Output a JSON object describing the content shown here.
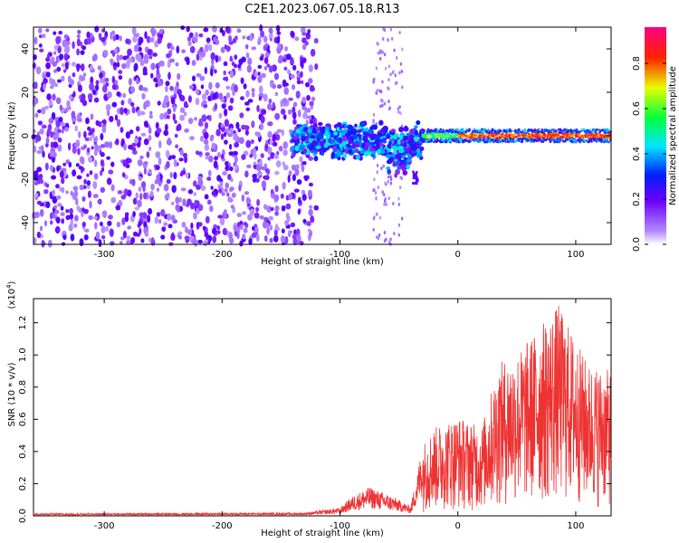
{
  "title": "C2E1.2023.067.05.18.R13",
  "chart_data": [
    {
      "type": "heatmap",
      "xlabel": "Height of straight line (km)",
      "ylabel": "Frequency (Hz)",
      "xlim": [
        -360,
        130
      ],
      "ylim": [
        -50,
        50
      ],
      "x_ticks": [
        "-300",
        "-200",
        "-100",
        "0",
        "100"
      ],
      "x_tick_values": [
        -300,
        -200,
        -100,
        0,
        100
      ],
      "y_ticks": [
        "40",
        "20",
        "0",
        "-20",
        "-40"
      ],
      "y_tick_values": [
        40,
        20,
        0,
        -20,
        -40
      ],
      "colorbar": {
        "label": "Normalized spectral amplitude",
        "range": [
          0,
          0.96
        ],
        "ticks": [
          "0.0",
          "0.2",
          "0.4",
          "0.6",
          "0.8"
        ],
        "tick_values": [
          0,
          0.2,
          0.4,
          0.6,
          0.8
        ],
        "colormap": [
          "#ffffff",
          "#8b00ff",
          "#0000ff",
          "#00ffff",
          "#00ff00",
          "#ffff00",
          "#ff0000",
          "#ff007f"
        ]
      },
      "regions": [
        {
          "x_range": [
            -360,
            -120
          ],
          "description_level": "noise",
          "amplitude": 0.1
        },
        {
          "x_range": [
            -120,
            -30
          ],
          "freq_center": -2,
          "freq_spread": 6,
          "amplitude": 0.3
        },
        {
          "x_range": [
            -30,
            130
          ],
          "freq_center": 0,
          "freq_spread": 1.5,
          "amplitude": 0.9
        }
      ]
    },
    {
      "type": "line",
      "xlabel": "Height of straight line (km)",
      "ylabel": "SNR (10 * v/v)",
      "y_multiplier": "(x10",
      "y_multiplier_exp": "4",
      "y_multiplier_close": ")",
      "xlim": [
        -360,
        130
      ],
      "ylim": [
        0,
        1.35
      ],
      "x_ticks": [
        "-300",
        "-200",
        "-100",
        "0",
        "100"
      ],
      "x_tick_values": [
        -300,
        -200,
        -100,
        0,
        100
      ],
      "y_ticks": [
        "0.0",
        "0.2",
        "0.4",
        "0.6",
        "0.8",
        "1.0",
        "1.2"
      ],
      "y_tick_values": [
        0,
        0.2,
        0.4,
        0.6,
        0.8,
        1.0,
        1.2
      ],
      "color": "#ee3333",
      "envelope": [
        {
          "x": -360,
          "y": 0.015
        },
        {
          "x": -130,
          "y": 0.02
        },
        {
          "x": -100,
          "y": 0.05
        },
        {
          "x": -90,
          "y": 0.12
        },
        {
          "x": -75,
          "y": 0.18
        },
        {
          "x": -55,
          "y": 0.12
        },
        {
          "x": -40,
          "y": 0.06
        },
        {
          "x": -30,
          "y": 0.45
        },
        {
          "x": -20,
          "y": 0.55
        },
        {
          "x": 0,
          "y": 0.62
        },
        {
          "x": 20,
          "y": 0.55
        },
        {
          "x": 35,
          "y": 0.95
        },
        {
          "x": 55,
          "y": 1.05
        },
        {
          "x": 85,
          "y": 1.32
        },
        {
          "x": 110,
          "y": 0.95
        },
        {
          "x": 130,
          "y": 0.9
        }
      ]
    }
  ]
}
